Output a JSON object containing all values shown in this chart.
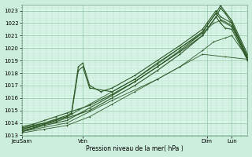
{
  "bg_color": "#cceedd",
  "plot_bg_color": "#d8f5e8",
  "grid_major_color": "#99ccaa",
  "grid_minor_color": "#bbddcc",
  "line_color": "#2d5a27",
  "ylabel_text": "Pression niveau de la mer( hPa )",
  "ylim": [
    1013.0,
    1023.5
  ],
  "yticks": [
    1013,
    1014,
    1015,
    1016,
    1017,
    1018,
    1019,
    1020,
    1021,
    1022,
    1023
  ],
  "xtick_labels": [
    "JeuSam",
    "Ven",
    "Dim",
    "Lun"
  ],
  "xtick_positions": [
    0.0,
    0.27,
    0.82,
    0.93
  ],
  "num_days": 7,
  "series": [
    {
      "x": [
        0.0,
        0.05,
        0.1,
        0.15,
        0.2,
        0.25,
        0.3,
        0.4,
        0.5,
        0.6,
        0.7,
        0.8,
        0.82,
        0.86,
        0.88,
        0.9,
        0.93,
        1.0
      ],
      "y": [
        1013.5,
        1013.7,
        1013.9,
        1014.1,
        1014.4,
        1014.7,
        1015.0,
        1016.0,
        1017.0,
        1018.2,
        1019.5,
        1021.0,
        1021.5,
        1022.5,
        1023.2,
        1022.8,
        1022.0,
        1019.2
      ]
    },
    {
      "x": [
        0.0,
        0.05,
        0.1,
        0.15,
        0.2,
        0.25,
        0.3,
        0.4,
        0.5,
        0.6,
        0.7,
        0.8,
        0.82,
        0.86,
        0.88,
        0.93,
        1.0
      ],
      "y": [
        1013.7,
        1013.9,
        1014.2,
        1014.5,
        1014.8,
        1015.1,
        1015.4,
        1016.3,
        1017.3,
        1018.5,
        1019.8,
        1021.2,
        1021.8,
        1022.8,
        1023.4,
        1022.2,
        1019.5
      ]
    },
    {
      "x": [
        0.0,
        0.05,
        0.1,
        0.15,
        0.2,
        0.22,
        0.25,
        0.27,
        0.3,
        0.35,
        0.4,
        0.5,
        0.6,
        0.7,
        0.8,
        0.82,
        0.86,
        0.88,
        0.93,
        1.0
      ],
      "y": [
        1013.6,
        1013.8,
        1014.0,
        1014.3,
        1014.6,
        1014.8,
        1018.5,
        1018.8,
        1017.0,
        1016.5,
        1016.8,
        1017.8,
        1019.0,
        1020.2,
        1021.5,
        1022.0,
        1023.0,
        1022.5,
        1022.0,
        1019.3
      ]
    },
    {
      "x": [
        0.0,
        0.05,
        0.1,
        0.15,
        0.2,
        0.22,
        0.25,
        0.27,
        0.3,
        0.4,
        0.5,
        0.6,
        0.7,
        0.8,
        0.82,
        0.86,
        0.88,
        0.93,
        1.0
      ],
      "y": [
        1013.4,
        1013.6,
        1013.9,
        1014.2,
        1014.5,
        1014.7,
        1018.2,
        1018.5,
        1016.8,
        1016.5,
        1017.5,
        1018.8,
        1020.0,
        1021.3,
        1021.8,
        1022.8,
        1022.3,
        1021.8,
        1019.1
      ]
    },
    {
      "x": [
        0.0,
        0.1,
        0.2,
        0.3,
        0.4,
        0.5,
        0.6,
        0.7,
        0.8,
        0.82,
        0.86,
        0.88,
        0.9,
        0.93,
        1.0
      ],
      "y": [
        1013.3,
        1013.8,
        1014.2,
        1015.2,
        1016.2,
        1017.3,
        1018.5,
        1019.7,
        1021.0,
        1021.5,
        1022.5,
        1022.0,
        1021.6,
        1021.5,
        1019.0
      ]
    },
    {
      "x": [
        0.0,
        0.1,
        0.2,
        0.3,
        0.4,
        0.5,
        0.6,
        0.7,
        0.8,
        0.85,
        0.88,
        0.93,
        1.0
      ],
      "y": [
        1013.5,
        1014.0,
        1014.5,
        1015.5,
        1016.5,
        1017.5,
        1018.7,
        1020.0,
        1021.2,
        1022.0,
        1022.2,
        1021.7,
        1019.2
      ]
    },
    {
      "x": [
        0.0,
        0.2,
        0.4,
        0.6,
        0.7,
        0.8,
        0.85,
        0.9,
        0.93,
        1.0
      ],
      "y": [
        1013.3,
        1014.0,
        1015.8,
        1017.5,
        1018.5,
        1019.8,
        1020.5,
        1020.8,
        1021.0,
        1019.2
      ]
    },
    {
      "x": [
        0.0,
        0.1,
        0.2,
        0.3,
        0.4,
        0.5,
        0.6,
        0.7,
        0.8,
        0.9,
        1.0
      ],
      "y": [
        1013.2,
        1013.5,
        1013.8,
        1014.5,
        1015.5,
        1016.5,
        1017.5,
        1018.5,
        1019.5,
        1019.3,
        1019.1
      ]
    }
  ]
}
